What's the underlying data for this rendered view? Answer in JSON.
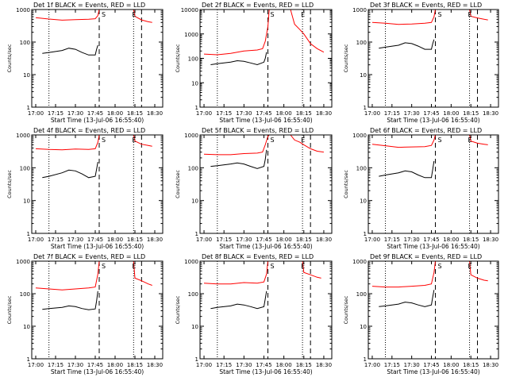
{
  "figure": {
    "background": "#ffffff",
    "axis_color": "#000000",
    "events_color": "#000000",
    "lld_color": "#ff0000"
  },
  "chart_data": [
    {
      "type": "line",
      "title": "Det 1f BLACK = Events, RED = LLD",
      "xlabel": "Start Time (13-Jul-06 16:55:40)",
      "ylabel": "Counts/sec",
      "x_ticks": [
        "17:00",
        "17:15",
        "17:30",
        "17:45",
        "18:00",
        "18:15",
        "18:30"
      ],
      "y_ticks": [
        "1",
        "10",
        "100",
        "1000"
      ],
      "ylim": [
        1,
        1000
      ],
      "y_scale": "log",
      "markers": [
        "S",
        "E"
      ],
      "series": [
        {
          "name": "LLD",
          "color": "#ff0000",
          "x": [
            "17:00",
            "17:10",
            "17:20",
            "17:30",
            "17:40",
            "17:45",
            "17:47",
            "17:48",
            "17:49",
            "18:00",
            "18:12",
            "18:14",
            "18:15",
            "18:20",
            "18:25",
            "18:28"
          ],
          "y": [
            560,
            510,
            470,
            490,
            500,
            520,
            650,
            1000,
            null,
            null,
            null,
            1000,
            620,
            480,
            420,
            400
          ]
        },
        {
          "name": "Events",
          "color": "#000000",
          "x": [
            "17:05",
            "17:10",
            "17:20",
            "17:25",
            "17:30",
            "17:35",
            "17:40",
            "17:45",
            "17:46",
            "17:47"
          ],
          "y": [
            45,
            48,
            55,
            65,
            60,
            48,
            40,
            40,
            60,
            80
          ]
        }
      ],
      "vlines": [
        {
          "x": "17:10",
          "style": "dotted"
        },
        {
          "x": "17:48",
          "style": "dashed"
        },
        {
          "x": "18:14",
          "style": "dotted"
        },
        {
          "x": "18:20",
          "style": "dashed"
        }
      ]
    },
    {
      "type": "line",
      "title": "Det 2f BLACK = Events, RED = LLD",
      "xlabel": "Start Time (13-Jul-06 16:55:40)",
      "ylabel": "Counts/sec",
      "x_ticks": [
        "17:00",
        "17:15",
        "17:30",
        "17:45",
        "18:00",
        "18:15",
        "18:30"
      ],
      "y_ticks": [
        "1",
        "10",
        "100",
        "1000",
        "10000"
      ],
      "ylim": [
        1,
        10000
      ],
      "y_scale": "log",
      "markers": [
        "S",
        "E"
      ],
      "series": [
        {
          "name": "LLD",
          "color": "#ff0000",
          "x": [
            "17:00",
            "17:10",
            "17:20",
            "17:30",
            "17:40",
            "17:44",
            "17:46",
            "17:48",
            "17:49",
            "18:05",
            "18:08",
            "18:12",
            "18:15",
            "18:20",
            "18:25",
            "18:30"
          ],
          "y": [
            150,
            140,
            160,
            200,
            220,
            250,
            500,
            2000,
            10000,
            10000,
            2500,
            1500,
            1000,
            400,
            250,
            180
          ]
        },
        {
          "name": "Events",
          "color": "#000000",
          "x": [
            "17:05",
            "17:10",
            "17:20",
            "17:25",
            "17:30",
            "17:35",
            "17:40",
            "17:45",
            "17:46",
            "17:47"
          ],
          "y": [
            55,
            60,
            70,
            80,
            75,
            65,
            55,
            70,
            100,
            180
          ]
        }
      ],
      "vlines": [
        {
          "x": "17:10",
          "style": "dotted"
        },
        {
          "x": "17:48",
          "style": "dashed"
        },
        {
          "x": "18:14",
          "style": "dotted"
        },
        {
          "x": "18:20",
          "style": "dashed"
        }
      ]
    },
    {
      "type": "line",
      "title": "Det 3f BLACK = Events, RED = LLD",
      "xlabel": "Start Time (13-Jul-06 16:55:40)",
      "ylabel": "Counts/sec",
      "x_ticks": [
        "17:00",
        "17:15",
        "17:30",
        "17:45",
        "18:00",
        "18:15",
        "18:30"
      ],
      "y_ticks": [
        "1",
        "10",
        "100",
        "1000"
      ],
      "ylim": [
        1,
        1000
      ],
      "y_scale": "log",
      "markers": [
        "S",
        "E"
      ],
      "series": [
        {
          "name": "LLD",
          "color": "#ff0000",
          "x": [
            "17:00",
            "17:10",
            "17:20",
            "17:30",
            "17:40",
            "17:45",
            "17:47",
            "17:48",
            "17:49",
            "18:00",
            "18:12",
            "18:14",
            "18:15",
            "18:20",
            "18:25",
            "18:28"
          ],
          "y": [
            400,
            380,
            350,
            360,
            380,
            400,
            600,
            1000,
            null,
            null,
            null,
            1000,
            620,
            550,
            500,
            480
          ]
        },
        {
          "name": "Events",
          "color": "#000000",
          "x": [
            "17:05",
            "17:10",
            "17:20",
            "17:25",
            "17:30",
            "17:35",
            "17:40",
            "17:45",
            "17:46",
            "17:47"
          ],
          "y": [
            65,
            70,
            80,
            95,
            90,
            75,
            60,
            60,
            90,
            120
          ]
        }
      ],
      "vlines": [
        {
          "x": "17:10",
          "style": "dotted"
        },
        {
          "x": "17:48",
          "style": "dashed"
        },
        {
          "x": "18:14",
          "style": "dotted"
        },
        {
          "x": "18:20",
          "style": "dashed"
        }
      ]
    },
    {
      "type": "line",
      "title": "Det 4f BLACK = Events, RED = LLD",
      "xlabel": "Start Time (13-Jul-06 16:55:40)",
      "ylabel": "Counts/sec",
      "x_ticks": [
        "17:00",
        "17:15",
        "17:30",
        "17:45",
        "18:00",
        "18:15",
        "18:30"
      ],
      "y_ticks": [
        "1",
        "10",
        "100",
        "1000"
      ],
      "ylim": [
        1,
        1000
      ],
      "y_scale": "log",
      "markers": [
        "S",
        "E"
      ],
      "series": [
        {
          "name": "LLD",
          "color": "#ff0000",
          "x": [
            "17:00",
            "17:10",
            "17:20",
            "17:30",
            "17:40",
            "17:45",
            "17:47",
            "17:48",
            "17:49",
            "18:00",
            "18:12",
            "18:14",
            "18:15",
            "18:20",
            "18:25",
            "18:28"
          ],
          "y": [
            380,
            360,
            350,
            370,
            360,
            380,
            600,
            1000,
            null,
            null,
            null,
            1000,
            650,
            520,
            480,
            450
          ]
        },
        {
          "name": "Events",
          "color": "#000000",
          "x": [
            "17:05",
            "17:10",
            "17:20",
            "17:25",
            "17:30",
            "17:35",
            "17:40",
            "17:45",
            "17:46",
            "17:47"
          ],
          "y": [
            50,
            55,
            70,
            85,
            80,
            65,
            50,
            55,
            90,
            150
          ]
        }
      ],
      "vlines": [
        {
          "x": "17:10",
          "style": "dotted"
        },
        {
          "x": "17:48",
          "style": "dashed"
        },
        {
          "x": "18:14",
          "style": "dotted"
        },
        {
          "x": "18:20",
          "style": "dashed"
        }
      ]
    },
    {
      "type": "line",
      "title": "Det 5f BLACK = Events, RED = LLD",
      "xlabel": "Start Time (13-Jul-06 16:55:40)",
      "ylabel": "Counts/sec",
      "x_ticks": [
        "17:00",
        "17:15",
        "17:30",
        "17:45",
        "18:00",
        "18:15",
        "18:30"
      ],
      "y_ticks": [
        "1",
        "10",
        "100",
        "1000"
      ],
      "ylim": [
        1,
        1000
      ],
      "y_scale": "log",
      "markers": [
        "S",
        "E"
      ],
      "series": [
        {
          "name": "LLD",
          "color": "#ff0000",
          "x": [
            "17:00",
            "17:10",
            "17:20",
            "17:30",
            "17:40",
            "17:44",
            "17:46",
            "17:48",
            "17:49",
            "18:05",
            "18:08",
            "18:12",
            "18:15",
            "18:20",
            "18:25",
            "18:30"
          ],
          "y": [
            260,
            250,
            250,
            270,
            280,
            300,
            500,
            900,
            1000,
            1000,
            700,
            600,
            500,
            380,
            320,
            300
          ]
        },
        {
          "name": "Events",
          "color": "#000000",
          "x": [
            "17:05",
            "17:10",
            "17:20",
            "17:25",
            "17:30",
            "17:35",
            "17:40",
            "17:45",
            "17:46",
            "17:47"
          ],
          "y": [
            110,
            115,
            130,
            140,
            130,
            110,
            95,
            110,
            180,
            350
          ]
        }
      ],
      "vlines": [
        {
          "x": "17:10",
          "style": "dotted"
        },
        {
          "x": "17:48",
          "style": "dashed"
        },
        {
          "x": "18:14",
          "style": "dotted"
        },
        {
          "x": "18:20",
          "style": "dashed"
        }
      ]
    },
    {
      "type": "line",
      "title": "Det 6f BLACK = Events, RED = LLD",
      "xlabel": "Start Time (13-Jul-06 16:55:40)",
      "ylabel": "Counts/sec",
      "x_ticks": [
        "17:00",
        "17:15",
        "17:30",
        "17:45",
        "18:00",
        "18:15",
        "18:30"
      ],
      "y_ticks": [
        "1",
        "10",
        "100",
        "1000"
      ],
      "ylim": [
        1,
        1000
      ],
      "y_scale": "log",
      "markers": [
        "S",
        "E"
      ],
      "series": [
        {
          "name": "LLD",
          "color": "#ff0000",
          "x": [
            "17:00",
            "17:10",
            "17:20",
            "17:30",
            "17:40",
            "17:45",
            "17:47",
            "17:48",
            "17:49",
            "18:00",
            "18:12",
            "18:14",
            "18:15",
            "18:20",
            "18:25",
            "18:28"
          ],
          "y": [
            520,
            470,
            420,
            430,
            440,
            480,
            700,
            1000,
            null,
            null,
            null,
            1000,
            650,
            560,
            520,
            500
          ]
        },
        {
          "name": "Events",
          "color": "#000000",
          "x": [
            "17:05",
            "17:10",
            "17:20",
            "17:25",
            "17:30",
            "17:35",
            "17:40",
            "17:45",
            "17:46",
            "17:47"
          ],
          "y": [
            55,
            60,
            70,
            80,
            75,
            60,
            50,
            50,
            90,
            160
          ]
        }
      ],
      "vlines": [
        {
          "x": "17:10",
          "style": "dotted"
        },
        {
          "x": "17:48",
          "style": "dashed"
        },
        {
          "x": "18:14",
          "style": "dotted"
        },
        {
          "x": "18:20",
          "style": "dashed"
        }
      ]
    },
    {
      "type": "line",
      "title": "Det 7f BLACK = Events, RED = LLD",
      "xlabel": "Start Time (13-Jul-06 16:55:40)",
      "ylabel": "Counts/sec",
      "x_ticks": [
        "17:00",
        "17:15",
        "17:30",
        "17:45",
        "18:00",
        "18:15",
        "18:30"
      ],
      "y_ticks": [
        "1",
        "10",
        "100",
        "1000"
      ],
      "ylim": [
        1,
        1000
      ],
      "y_scale": "log",
      "markers": [
        "S",
        "E"
      ],
      "series": [
        {
          "name": "LLD",
          "color": "#ff0000",
          "x": [
            "17:00",
            "17:10",
            "17:20",
            "17:30",
            "17:40",
            "17:45",
            "17:47",
            "17:48",
            "17:49",
            "18:00",
            "18:12",
            "18:14",
            "18:15",
            "18:20",
            "18:25",
            "18:28"
          ],
          "y": [
            150,
            140,
            130,
            140,
            150,
            160,
            400,
            1000,
            null,
            null,
            null,
            1000,
            300,
            250,
            200,
            180
          ]
        },
        {
          "name": "Events",
          "color": "#000000",
          "x": [
            "17:05",
            "17:10",
            "17:20",
            "17:25",
            "17:30",
            "17:35",
            "17:40",
            "17:45",
            "17:46",
            "17:47"
          ],
          "y": [
            33,
            35,
            38,
            42,
            40,
            35,
            32,
            34,
            60,
            120
          ]
        }
      ],
      "vlines": [
        {
          "x": "17:10",
          "style": "dotted"
        },
        {
          "x": "17:48",
          "style": "dashed"
        },
        {
          "x": "18:14",
          "style": "dotted"
        },
        {
          "x": "18:20",
          "style": "dashed"
        }
      ]
    },
    {
      "type": "line",
      "title": "Det 8f BLACK = Events, RED = LLD",
      "xlabel": "Start Time (13-Jul-06 16:55:40)",
      "ylabel": "Counts/sec",
      "x_ticks": [
        "17:00",
        "17:15",
        "17:30",
        "17:45",
        "18:00",
        "18:15",
        "18:30"
      ],
      "y_ticks": [
        "1",
        "10",
        "100",
        "1000"
      ],
      "ylim": [
        1,
        1000
      ],
      "y_scale": "log",
      "markers": [
        "S",
        "E"
      ],
      "series": [
        {
          "name": "LLD",
          "color": "#ff0000",
          "x": [
            "17:00",
            "17:10",
            "17:20",
            "17:30",
            "17:40",
            "17:45",
            "17:47",
            "17:48",
            "17:49",
            "18:00",
            "18:12",
            "18:14",
            "18:15",
            "18:20",
            "18:25",
            "18:28"
          ],
          "y": [
            210,
            200,
            200,
            220,
            210,
            230,
            400,
            1000,
            null,
            null,
            null,
            1000,
            450,
            380,
            320,
            300
          ]
        },
        {
          "name": "Events",
          "color": "#000000",
          "x": [
            "17:05",
            "17:10",
            "17:20",
            "17:25",
            "17:30",
            "17:35",
            "17:40",
            "17:45",
            "17:46",
            "17:47"
          ],
          "y": [
            35,
            38,
            42,
            48,
            45,
            40,
            35,
            40,
            70,
            120
          ]
        }
      ],
      "vlines": [
        {
          "x": "17:10",
          "style": "dotted"
        },
        {
          "x": "17:48",
          "style": "dashed"
        },
        {
          "x": "18:14",
          "style": "dotted"
        },
        {
          "x": "18:20",
          "style": "dashed"
        }
      ]
    },
    {
      "type": "line",
      "title": "Det 9f BLACK = Events, RED = LLD",
      "xlabel": "Start Time (13-Jul-06 16:55:40)",
      "ylabel": "Counts/sec",
      "x_ticks": [
        "17:00",
        "17:15",
        "17:30",
        "17:45",
        "18:00",
        "18:15",
        "18:30"
      ],
      "y_ticks": [
        "1",
        "10",
        "100",
        "1000"
      ],
      "ylim": [
        1,
        1000
      ],
      "y_scale": "log",
      "markers": [
        "S",
        "E"
      ],
      "series": [
        {
          "name": "LLD",
          "color": "#ff0000",
          "x": [
            "17:00",
            "17:10",
            "17:20",
            "17:30",
            "17:40",
            "17:45",
            "17:47",
            "17:48",
            "17:49",
            "18:00",
            "18:12",
            "18:14",
            "18:15",
            "18:20",
            "18:25",
            "18:28"
          ],
          "y": [
            170,
            160,
            160,
            170,
            180,
            200,
            450,
            1000,
            null,
            null,
            null,
            1000,
            380,
            300,
            260,
            250
          ]
        },
        {
          "name": "Events",
          "color": "#000000",
          "x": [
            "17:05",
            "17:10",
            "17:20",
            "17:25",
            "17:30",
            "17:35",
            "17:40",
            "17:45",
            "17:46",
            "17:47"
          ],
          "y": [
            40,
            42,
            48,
            55,
            52,
            45,
            40,
            45,
            80,
            130
          ]
        }
      ],
      "vlines": [
        {
          "x": "17:10",
          "style": "dotted"
        },
        {
          "x": "17:48",
          "style": "dashed"
        },
        {
          "x": "18:14",
          "style": "dotted"
        },
        {
          "x": "18:20",
          "style": "dashed"
        }
      ]
    }
  ]
}
